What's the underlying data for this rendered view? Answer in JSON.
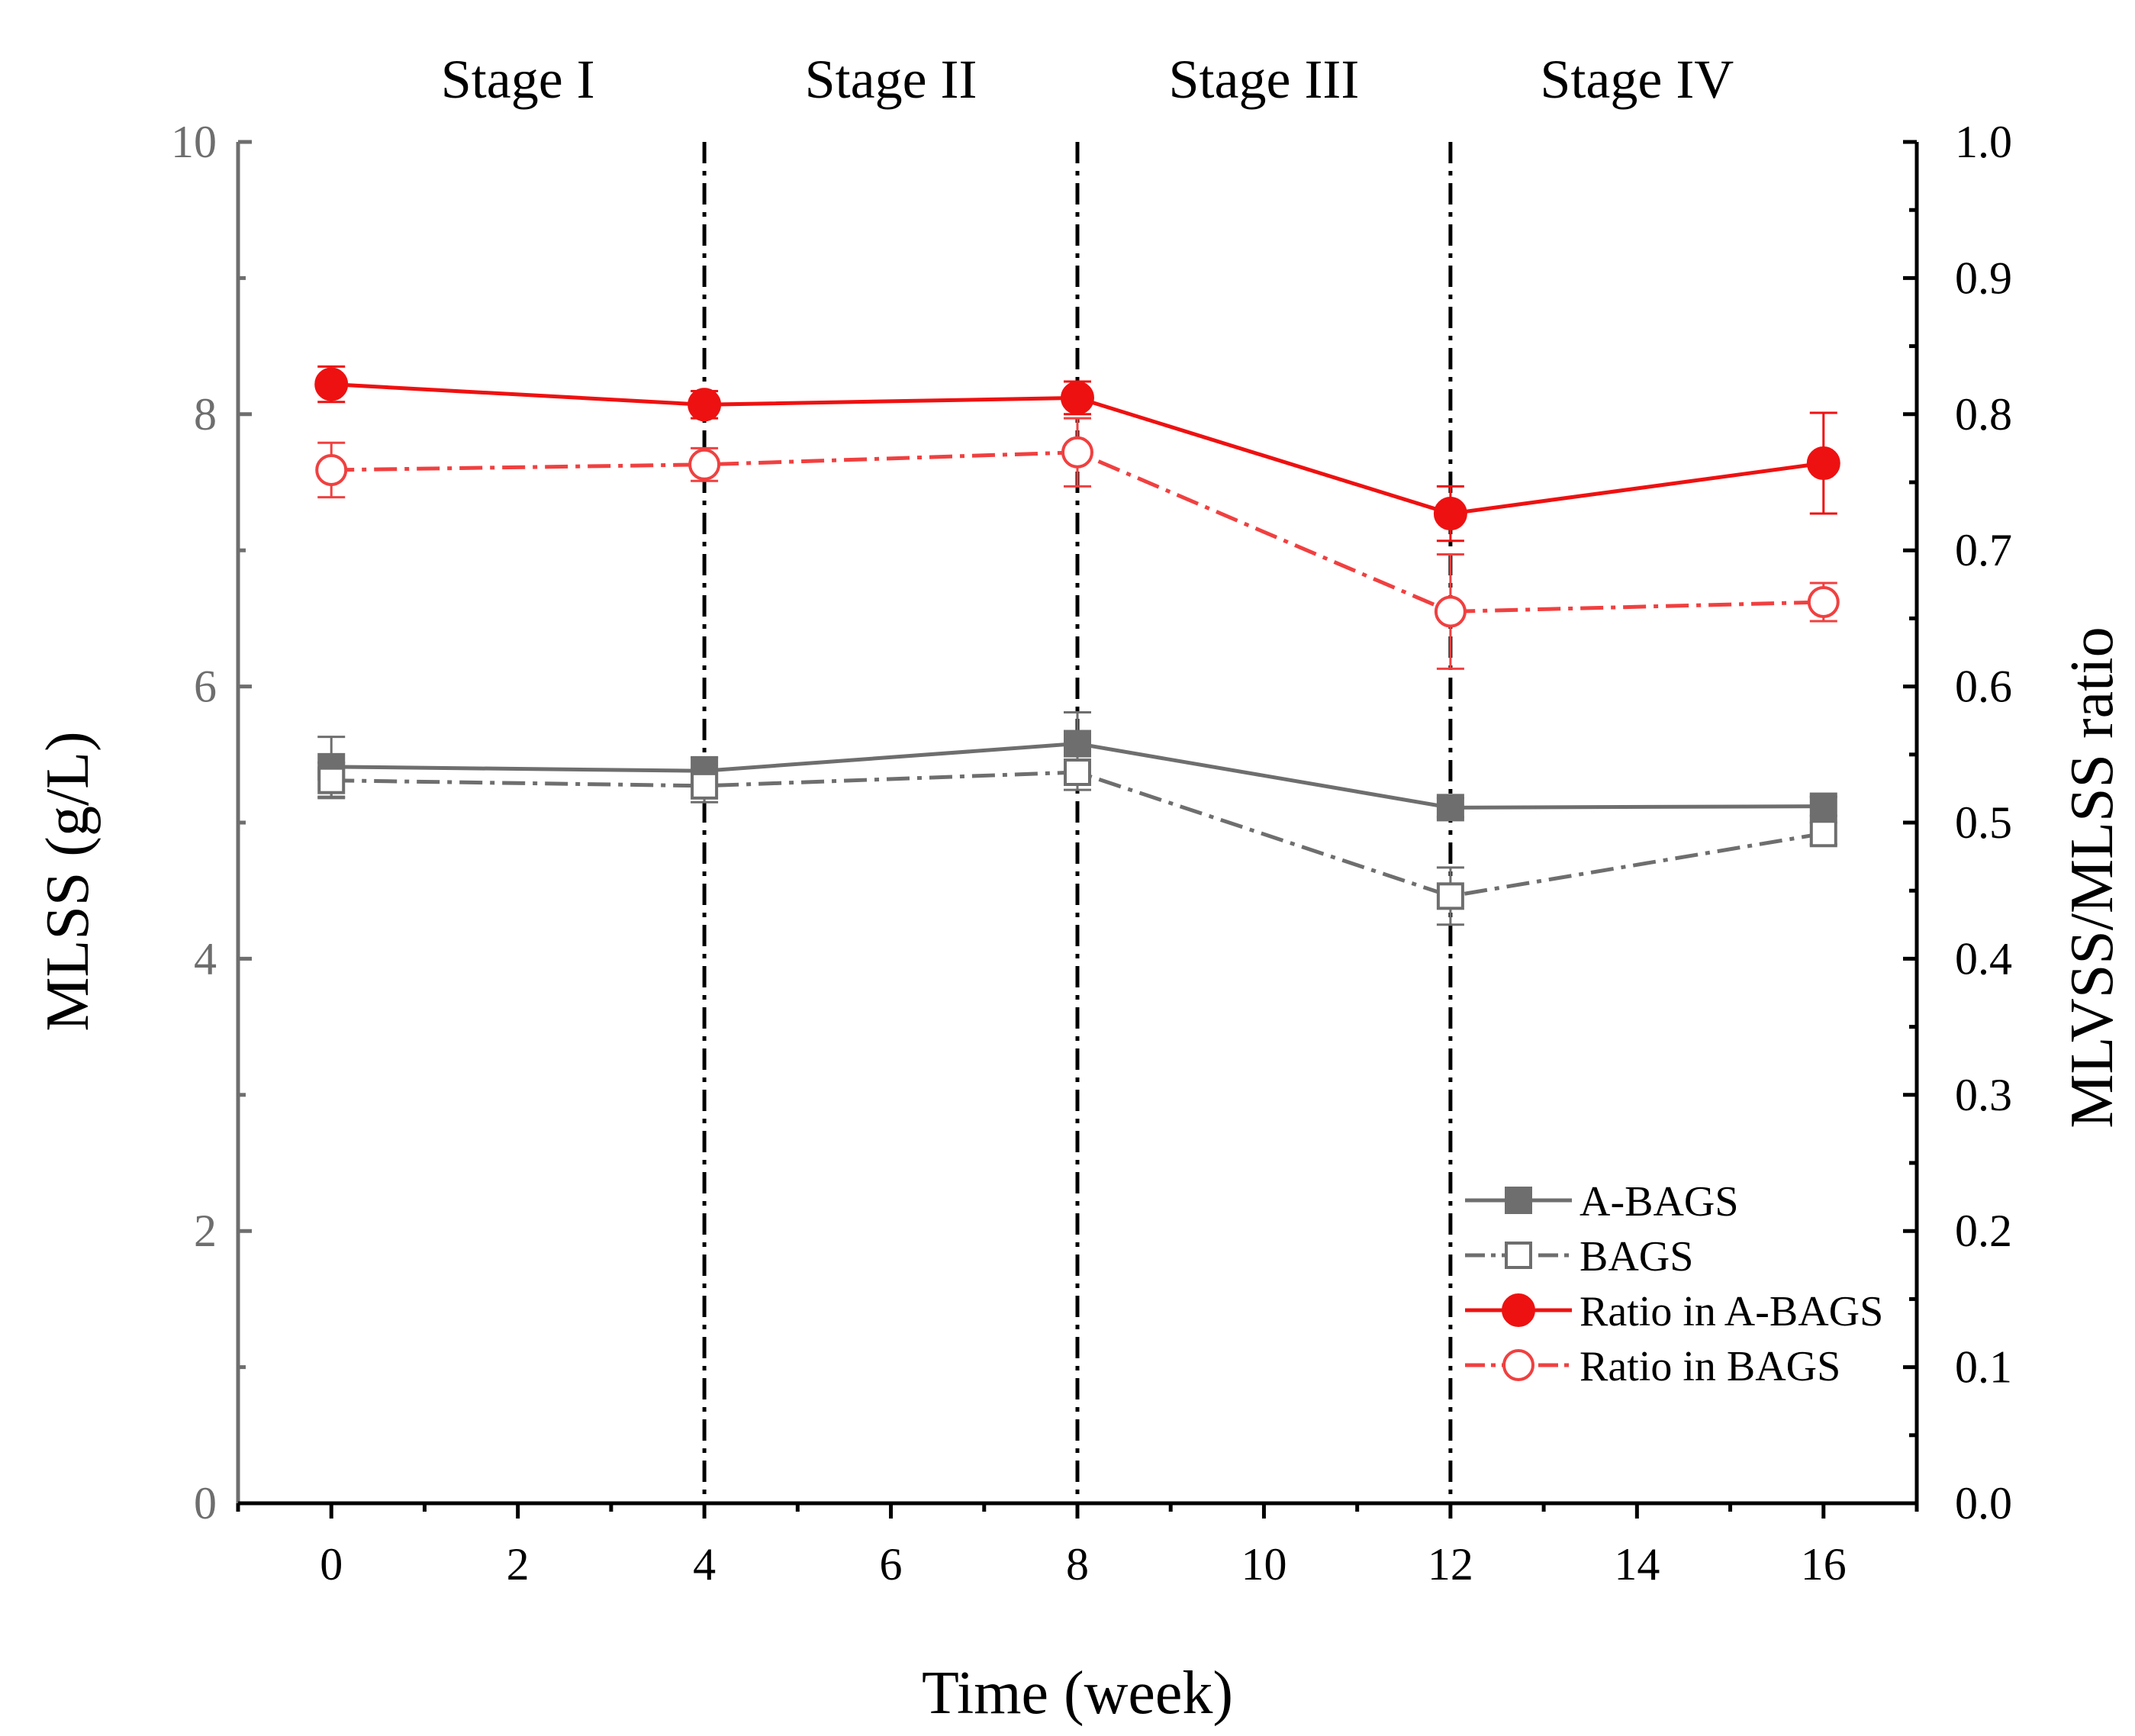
{
  "chart_data": {
    "type": "line",
    "x": [
      0,
      4,
      8,
      12,
      16
    ],
    "xlabel": "Time (week)",
    "ylabel_left": "MLSS (g/L)",
    "ylabel_right": "MLVSS/MLSS ratio",
    "xlim": [
      -1,
      17
    ],
    "ylim_left": [
      0,
      10
    ],
    "ylim_right": [
      0.0,
      1.0
    ],
    "x_ticks": [
      "0",
      "2",
      "4",
      "6",
      "8",
      "10",
      "12",
      "14",
      "16"
    ],
    "y_left_ticks": [
      "0",
      "2",
      "4",
      "6",
      "8",
      "10"
    ],
    "y_right_ticks": [
      "0.0",
      "0.1",
      "0.2",
      "0.3",
      "0.4",
      "0.5",
      "0.6",
      "0.7",
      "0.8",
      "0.9",
      "1.0"
    ],
    "stages": [
      {
        "label": "Stage I",
        "start": 0,
        "end": 4
      },
      {
        "label": "Stage II",
        "start": 4,
        "end": 8
      },
      {
        "label": "Stage III",
        "start": 8,
        "end": 12
      },
      {
        "label": "Stage IV",
        "start": 12,
        "end": 16
      }
    ],
    "stage_boundaries": [
      4,
      8,
      12
    ],
    "grid": false,
    "legend_position": "bottom-right",
    "series": [
      {
        "name": "A-BAGS",
        "axis": "left",
        "values": [
          5.41,
          5.38,
          5.58,
          5.11,
          5.12
        ],
        "errors": [
          0.22,
          0.1,
          0.23,
          0.07,
          0.07
        ],
        "color": "#6e6e6e",
        "marker": "square-filled",
        "line": "solid"
      },
      {
        "name": "BAGS",
        "axis": "left",
        "values": [
          5.31,
          5.27,
          5.37,
          4.46,
          4.92
        ],
        "errors": [
          0.13,
          0.12,
          0.13,
          0.21,
          0.08
        ],
        "color": "#6e6e6e",
        "marker": "square-open",
        "line": "dashdot"
      },
      {
        "name": "Ratio in A-BAGS",
        "axis": "right",
        "values": [
          0.822,
          0.807,
          0.812,
          0.727,
          0.764
        ],
        "errors": [
          0.013,
          0.01,
          0.012,
          0.02,
          0.037
        ],
        "color": "#ee1111",
        "marker": "circle-filled",
        "line": "solid"
      },
      {
        "name": "Ratio in BAGS",
        "axis": "right",
        "values": [
          0.759,
          0.763,
          0.772,
          0.655,
          0.662
        ],
        "errors": [
          0.02,
          0.012,
          0.025,
          0.042,
          0.014
        ],
        "color": "#f04040",
        "marker": "circle-open",
        "line": "dashdot"
      }
    ]
  }
}
